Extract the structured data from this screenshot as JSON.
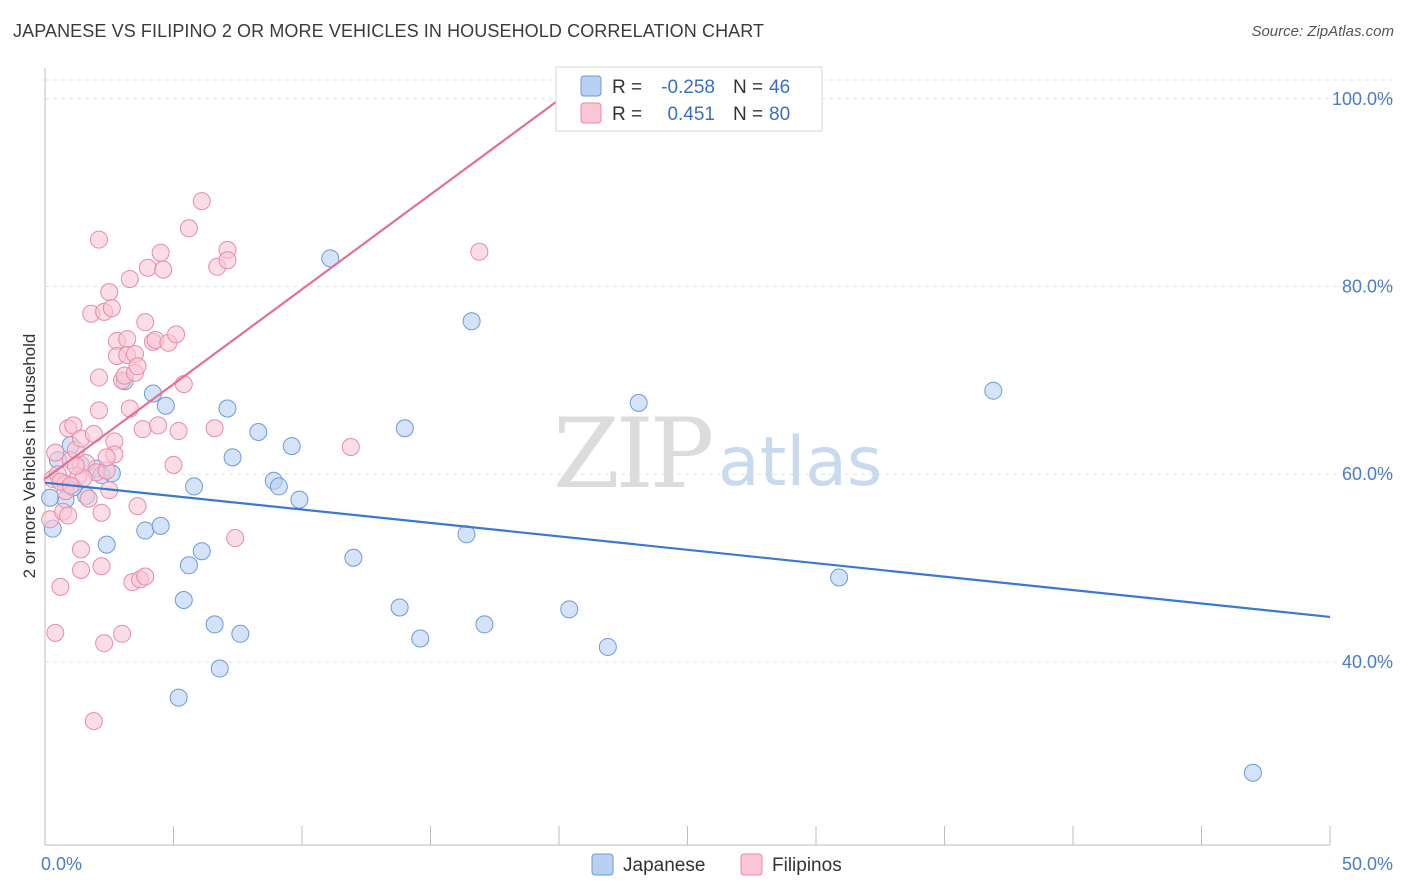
{
  "header": {
    "title": "JAPANESE VS FILIPINO 2 OR MORE VEHICLES IN HOUSEHOLD CORRELATION CHART",
    "source": "Source: ZipAtlas.com"
  },
  "watermark": {
    "part1": "ZIP",
    "part2": "atlas"
  },
  "legend_top": {
    "rows": [
      {
        "r_label": "R =",
        "r_value": "-0.258",
        "n_label": "N =",
        "n_value": "46",
        "fill": "#b8d0f2",
        "stroke": "#6d9ad8"
      },
      {
        "r_label": "R =",
        "r_value": "0.451",
        "n_label": "N =",
        "n_value": "80",
        "fill": "#f9c6d6",
        "stroke": "#e98aa8"
      }
    ]
  },
  "legend_bottom": {
    "items": [
      {
        "label": "Japanese",
        "fill": "#b8d0f2",
        "stroke": "#6d9ad8"
      },
      {
        "label": "Filipinos",
        "fill": "#f9c6d6",
        "stroke": "#e98aa8"
      }
    ]
  },
  "chart_data": {
    "type": "scatter",
    "title": "JAPANESE VS FILIPINO 2 OR MORE VEHICLES IN HOUSEHOLD CORRELATION CHART",
    "xlabel": "",
    "ylabel": "2 or more Vehicles in Household",
    "xlim": [
      0,
      50
    ],
    "ylim": [
      20.5,
      102
    ],
    "x_tick_labels": [
      "0.0%",
      "50.0%"
    ],
    "y_ticks": [
      40,
      60,
      80,
      100
    ],
    "y_tick_labels": [
      "40.0%",
      "60.0%",
      "80.0%",
      "100.0%"
    ],
    "grid": true,
    "series": [
      {
        "name": "Japanese",
        "color": "#3b78d2",
        "fill": "#b8d0f2",
        "stroke": "#6d9ad8",
        "R": -0.258,
        "N": 46,
        "trend": {
          "x": [
            0,
            50
          ],
          "y": [
            59.1,
            44.8
          ]
        },
        "points": [
          [
            0.3,
            54.2
          ],
          [
            0.5,
            61.5
          ],
          [
            0.8,
            57.3
          ],
          [
            1.0,
            63.1
          ],
          [
            1.4,
            61.0
          ],
          [
            1.6,
            57.7
          ],
          [
            2.0,
            60.6
          ],
          [
            2.2,
            59.9
          ],
          [
            2.4,
            52.5
          ],
          [
            3.1,
            69.9
          ],
          [
            2.6,
            60.1
          ],
          [
            3.9,
            54.0
          ],
          [
            4.2,
            68.6
          ],
          [
            4.5,
            54.5
          ],
          [
            4.7,
            67.3
          ],
          [
            5.2,
            36.2
          ],
          [
            5.4,
            46.6
          ],
          [
            5.6,
            50.3
          ],
          [
            5.8,
            58.7
          ],
          [
            6.1,
            51.8
          ],
          [
            6.6,
            44.0
          ],
          [
            6.8,
            39.3
          ],
          [
            7.1,
            67.0
          ],
          [
            7.3,
            61.8
          ],
          [
            7.6,
            43.0
          ],
          [
            8.3,
            64.5
          ],
          [
            8.9,
            59.3
          ],
          [
            9.1,
            58.7
          ],
          [
            9.6,
            63.0
          ],
          [
            9.9,
            57.3
          ],
          [
            11.1,
            83.0
          ],
          [
            12.0,
            51.1
          ],
          [
            13.8,
            45.8
          ],
          [
            14.0,
            64.9
          ],
          [
            14.6,
            42.5
          ],
          [
            16.4,
            53.6
          ],
          [
            16.6,
            76.3
          ],
          [
            17.1,
            44.0
          ],
          [
            20.4,
            45.6
          ],
          [
            21.9,
            41.6
          ],
          [
            23.1,
            67.6
          ],
          [
            30.9,
            49.0
          ],
          [
            36.9,
            68.9
          ],
          [
            47.0,
            28.2
          ],
          [
            0.2,
            57.5
          ],
          [
            1.1,
            58.6
          ]
        ]
      },
      {
        "name": "Filipinos",
        "color": "#e36f97",
        "fill": "#f9c6d6",
        "stroke": "#e98aa8",
        "R": 0.451,
        "N": 80,
        "trend": {
          "x": [
            0,
            20
          ],
          "y": [
            59.5,
            99.9
          ]
        },
        "points": [
          [
            0.2,
            55.2
          ],
          [
            0.3,
            59.5
          ],
          [
            0.4,
            43.1
          ],
          [
            0.5,
            60.0
          ],
          [
            0.6,
            48.0
          ],
          [
            0.7,
            56.0
          ],
          [
            0.8,
            59.0
          ],
          [
            0.9,
            64.9
          ],
          [
            1.0,
            61.5
          ],
          [
            1.1,
            65.2
          ],
          [
            1.2,
            62.6
          ],
          [
            1.3,
            59.8
          ],
          [
            1.4,
            63.8
          ],
          [
            1.4,
            52.0
          ],
          [
            1.4,
            49.8
          ],
          [
            1.6,
            61.2
          ],
          [
            1.7,
            57.4
          ],
          [
            1.8,
            77.1
          ],
          [
            1.9,
            64.3
          ],
          [
            2.0,
            60.2
          ],
          [
            2.1,
            66.8
          ],
          [
            2.1,
            70.3
          ],
          [
            2.1,
            85.0
          ],
          [
            2.2,
            50.2
          ],
          [
            2.3,
            77.3
          ],
          [
            2.3,
            42.0
          ],
          [
            2.4,
            60.4
          ],
          [
            2.5,
            79.4
          ],
          [
            2.5,
            58.3
          ],
          [
            2.6,
            77.7
          ],
          [
            2.7,
            63.5
          ],
          [
            2.8,
            74.2
          ],
          [
            2.8,
            72.6
          ],
          [
            3.0,
            70.0
          ],
          [
            3.0,
            43.0
          ],
          [
            3.1,
            70.5
          ],
          [
            3.2,
            74.4
          ],
          [
            3.2,
            72.7
          ],
          [
            3.3,
            80.8
          ],
          [
            3.3,
            67.0
          ],
          [
            3.4,
            48.5
          ],
          [
            3.5,
            72.8
          ],
          [
            3.5,
            70.8
          ],
          [
            3.6,
            71.5
          ],
          [
            3.7,
            48.8
          ],
          [
            3.8,
            64.8
          ],
          [
            3.9,
            49.1
          ],
          [
            3.9,
            76.2
          ],
          [
            4.0,
            82.0
          ],
          [
            4.2,
            74.1
          ],
          [
            4.3,
            74.3
          ],
          [
            4.4,
            65.2
          ],
          [
            4.5,
            83.6
          ],
          [
            4.6,
            81.8
          ],
          [
            4.8,
            74.0
          ],
          [
            5.0,
            61.0
          ],
          [
            5.1,
            74.9
          ],
          [
            5.2,
            64.6
          ],
          [
            5.4,
            69.6
          ],
          [
            5.6,
            86.2
          ],
          [
            6.1,
            89.1
          ],
          [
            6.6,
            64.9
          ],
          [
            6.7,
            82.1
          ],
          [
            7.1,
            83.9
          ],
          [
            7.1,
            82.8
          ],
          [
            7.4,
            53.2
          ],
          [
            11.9,
            62.9
          ],
          [
            16.9,
            83.7
          ],
          [
            0.8,
            58.2
          ],
          [
            1.5,
            59.6
          ],
          [
            1.9,
            33.7
          ],
          [
            0.6,
            59.2
          ],
          [
            1.0,
            58.8
          ],
          [
            2.2,
            55.9
          ],
          [
            2.7,
            62.1
          ],
          [
            0.4,
            62.3
          ],
          [
            1.2,
            60.9
          ],
          [
            3.6,
            56.6
          ],
          [
            0.9,
            55.6
          ],
          [
            2.4,
            61.8
          ]
        ]
      }
    ]
  }
}
